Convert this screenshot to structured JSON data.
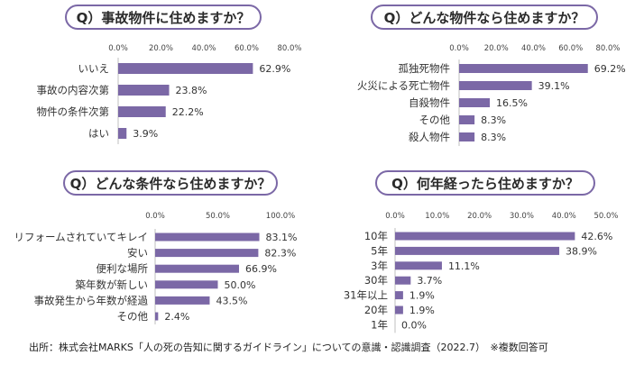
{
  "bar_color": "#7b68a6",
  "source": "出所：株式会社MARKS「人の死の告知に関するガイドライン」についての意識・認識調査（2022.7）　※複数回答可",
  "chart_data": [
    {
      "type": "bar",
      "title": "Q）事故物件に住めますか？",
      "categories": [
        "いいえ",
        "事故の内容次第",
        "物件の条件次第",
        "はい"
      ],
      "values": [
        62.9,
        23.8,
        22.2,
        3.9
      ],
      "value_labels": [
        "62.9%",
        "23.8%",
        "22.2%",
        "3.9%"
      ],
      "ticks": [
        "0.0%",
        "20.0%",
        "40.0%",
        "60.0%",
        "80.0%"
      ],
      "xlim": [
        0,
        80
      ],
      "orientation": "horizontal"
    },
    {
      "type": "bar",
      "title": "Q）どんな物件なら住めますか？",
      "categories": [
        "孤独死物件",
        "火災による死亡物件",
        "自殺物件",
        "その他",
        "殺人物件"
      ],
      "values": [
        69.2,
        39.1,
        16.5,
        8.3,
        8.3
      ],
      "value_labels": [
        "69.2%",
        "39.1%",
        "16.5%",
        "8.3%",
        "8.3%"
      ],
      "ticks": [
        "0.0%",
        "20.0%",
        "40.0%",
        "60.0%",
        "80.0%"
      ],
      "xlim": [
        0,
        80
      ],
      "orientation": "horizontal"
    },
    {
      "type": "bar",
      "title": "Q）どんな条件なら住めますか？",
      "categories": [
        "リフォームされていてキレイ",
        "安い",
        "便利な場所",
        "築年数が新しい",
        "事故発生から年数が経過",
        "その他"
      ],
      "values": [
        83.1,
        82.3,
        66.9,
        50.0,
        43.5,
        2.4
      ],
      "value_labels": [
        "83.1%",
        "82.3%",
        "66.9%",
        "50.0%",
        "43.5%",
        "2.4%"
      ],
      "ticks": [
        "0.0%",
        "50.0%",
        "100.0%"
      ],
      "xlim": [
        0,
        100
      ],
      "orientation": "horizontal"
    },
    {
      "type": "bar",
      "title": "Q）何年経ったら住めますか？",
      "categories": [
        "10年",
        "5年",
        "3年",
        "30年",
        "31年以上",
        "20年",
        "1年"
      ],
      "values": [
        42.6,
        38.9,
        11.1,
        3.7,
        1.9,
        1.9,
        0.0
      ],
      "value_labels": [
        "42.6%",
        "38.9%",
        "11.1%",
        "3.7%",
        "1.9%",
        "1.9%",
        "0.0%"
      ],
      "ticks": [
        "0.0%",
        "10.0%",
        "20.0%",
        "30.0%",
        "40.0%",
        "50.0%"
      ],
      "xlim": [
        0,
        50
      ],
      "orientation": "horizontal"
    }
  ]
}
